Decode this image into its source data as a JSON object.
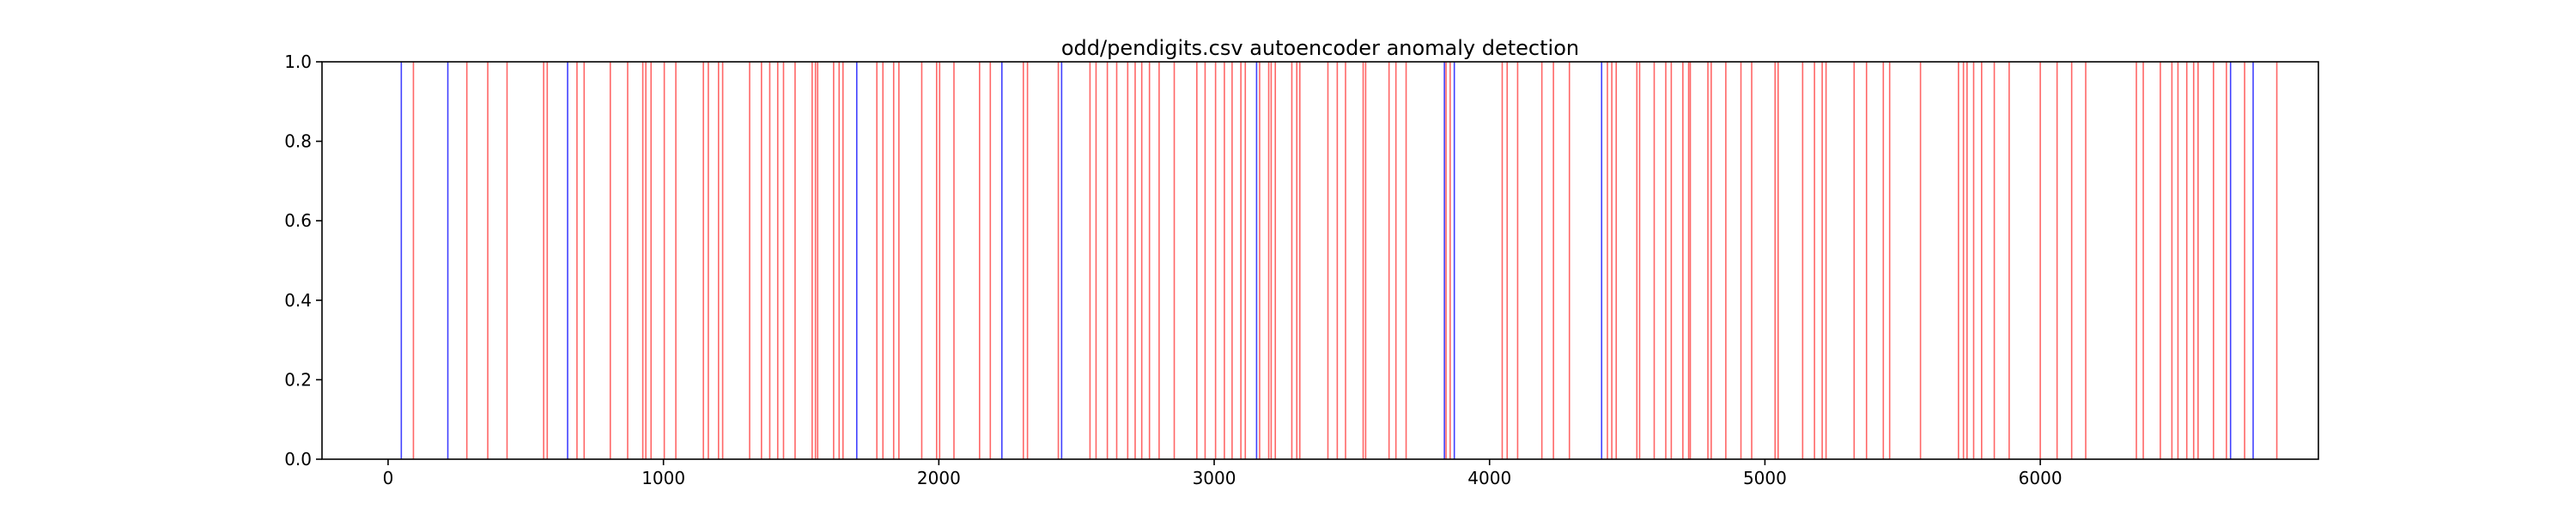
{
  "chart_data": {
    "type": "line",
    "title": "odd/pendigits.csv autoencoder anomaly detection",
    "xlabel": "",
    "ylabel": "",
    "xlim": [
      -240,
      7010
    ],
    "ylim": [
      0,
      1
    ],
    "x_ticks": [
      0,
      1000,
      2000,
      3000,
      4000,
      5000,
      6000
    ],
    "y_ticks": [
      0.0,
      0.2,
      0.4,
      0.6,
      0.8,
      1.0
    ],
    "x_tick_labels": [
      "0",
      "1000",
      "2000",
      "3000",
      "4000",
      "5000",
      "6000"
    ],
    "y_tick_labels": [
      "0.0",
      "0.2",
      "0.4",
      "0.6",
      "0.8",
      "1.0"
    ],
    "grid": false,
    "series": [
      {
        "color": "#ff0000",
        "style": "vertical lines spanning 0 to 1",
        "x": [
          92,
          286,
          362,
          432,
          565,
          578,
          686,
          712,
          807,
          870,
          925,
          936,
          955,
          1003,
          1045,
          1145,
          1163,
          1200,
          1215,
          1313,
          1356,
          1386,
          1415,
          1436,
          1478,
          1540,
          1552,
          1560,
          1618,
          1638,
          1652,
          1775,
          1797,
          1836,
          1855,
          1938,
          1992,
          2003,
          2055,
          2148,
          2187,
          2307,
          2322,
          2434,
          2549,
          2571,
          2612,
          2646,
          2686,
          2713,
          2737,
          2765,
          2800,
          2855,
          2937,
          2967,
          3005,
          3037,
          3065,
          3097,
          3113,
          3165,
          3198,
          3207,
          3222,
          3282,
          3300,
          3311,
          3413,
          3447,
          3477,
          3541,
          3550,
          3635,
          3660,
          3697,
          3842,
          3857,
          4046,
          4064,
          4102,
          4190,
          4232,
          4290,
          4428,
          4444,
          4460,
          4535,
          4545,
          4598,
          4640,
          4660,
          4702,
          4723,
          4729,
          4793,
          4805,
          4858,
          4913,
          4952,
          5037,
          5048,
          5137,
          5180,
          5208,
          5222,
          5324,
          5369,
          5430,
          5453,
          5565,
          5703,
          5721,
          5734,
          5758,
          5787,
          5833,
          5887,
          6000,
          6061,
          6114,
          6165,
          6349,
          6374,
          6436,
          6478,
          6500,
          6532,
          6557,
          6573,
          6629,
          6676,
          6742,
          6859
        ]
      },
      {
        "color": "#0000ff",
        "style": "vertical lines spanning 0 to 1",
        "x": [
          48,
          217,
          652,
          1702,
          2229,
          2446,
          3154,
          3836,
          3872,
          4407,
          6691,
          6773
        ]
      }
    ]
  }
}
